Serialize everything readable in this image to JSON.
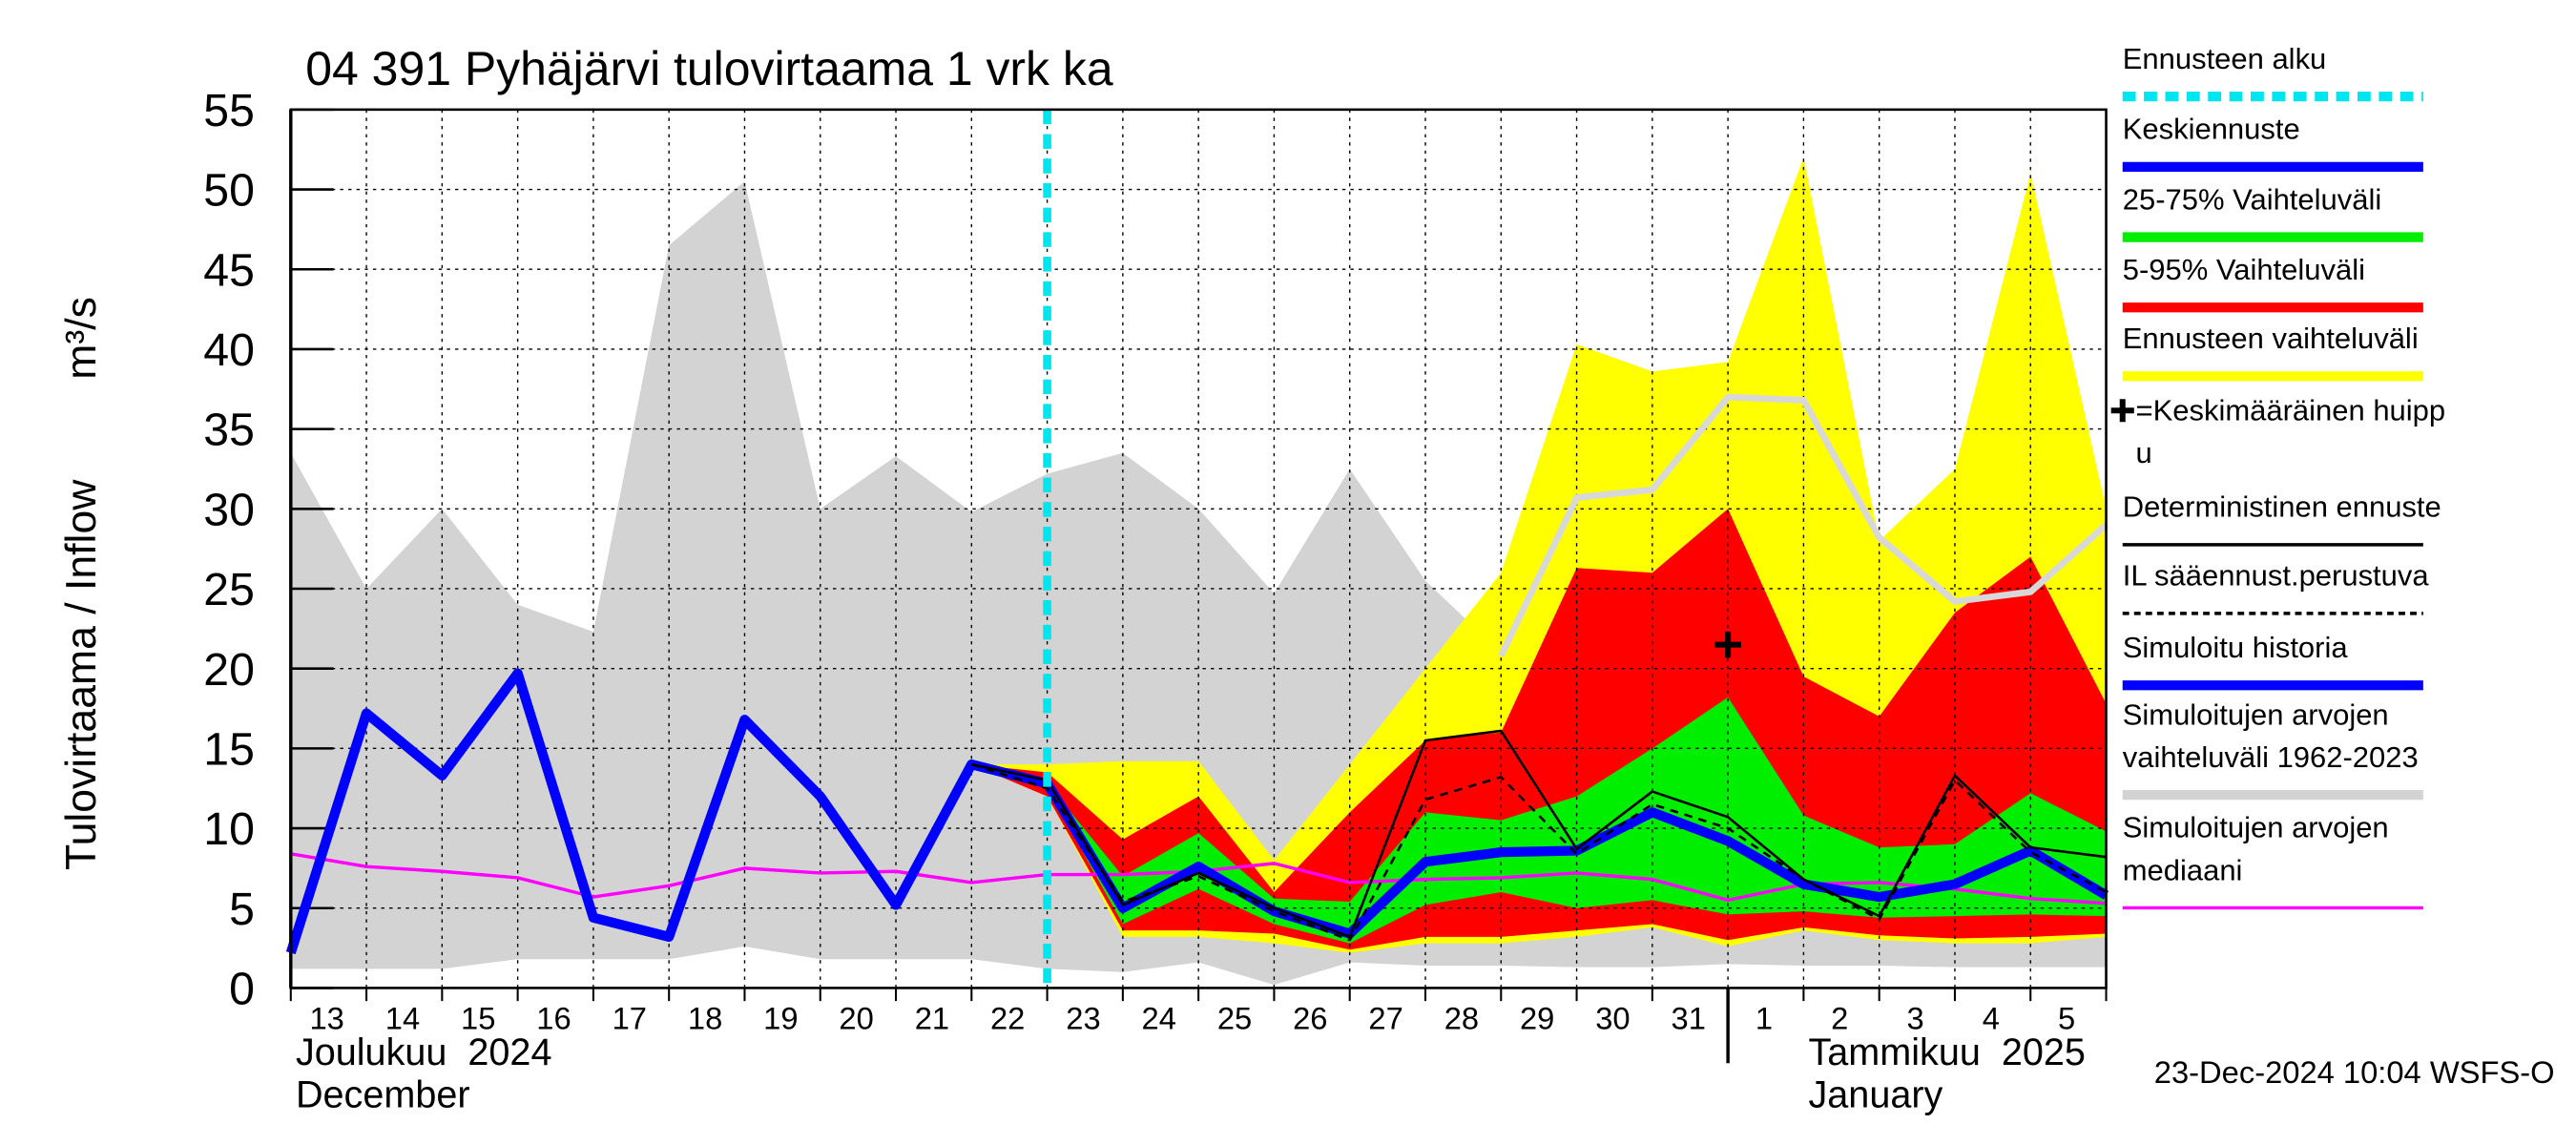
{
  "chart_data": {
    "type": "hydrograph",
    "title": "04 391 Pyhäjärvi tulovirtaama 1 vrk ka",
    "y_label": "Tulovirtaama / Inflow",
    "y_unit": "m³/s",
    "footer": "23-Dec-2024 10:04 WSFS-O",
    "categories": [
      "13",
      "14",
      "15",
      "16",
      "17",
      "18",
      "19",
      "20",
      "21",
      "22",
      "23",
      "24",
      "25",
      "26",
      "27",
      "28",
      "29",
      "30",
      "31",
      "1",
      "2",
      "3",
      "4",
      "5",
      null
    ],
    "months": [
      {
        "name": "Joulukuu  2024",
        "name_en": "December",
        "start": 0
      },
      {
        "name": "Tammikuu  2025",
        "name_en": "January",
        "start": 19
      }
    ],
    "ylim": [
      0,
      55
    ],
    "yticks": [
      0,
      5,
      10,
      15,
      20,
      25,
      30,
      35,
      40,
      45,
      50,
      55
    ],
    "grid": true,
    "forecast_start": 10,
    "forecast_start_color": "#00e5ee",
    "series": [
      {
        "kind": "band",
        "color": "#d3d3d3",
        "upper": [
          33.5,
          25,
          30,
          24,
          22.3,
          46.5,
          50.5,
          30,
          33.3,
          29.8,
          32.2,
          33.5,
          30,
          24.7,
          32.5,
          25.5,
          21,
          25,
          27,
          28,
          29,
          28,
          27,
          28,
          29.5
        ],
        "lower": [
          1.2,
          1.2,
          1.2,
          1.8,
          1.8,
          1.8,
          2.6,
          1.8,
          1.8,
          1.8,
          1.2,
          1,
          1.6,
          0.2,
          1.6,
          1.4,
          1.4,
          1.3,
          1.3,
          1.5,
          1.4,
          1.4,
          1.3,
          1.3,
          1.3
        ]
      },
      {
        "kind": "band",
        "color": "#ffff00",
        "upper": [
          null,
          null,
          null,
          null,
          null,
          null,
          null,
          null,
          null,
          14,
          14,
          14.2,
          14.2,
          8,
          14,
          20,
          26,
          40.3,
          38.6,
          39.2,
          52,
          28,
          32.5,
          51,
          30
        ],
        "lower": [
          null,
          null,
          null,
          null,
          null,
          null,
          null,
          null,
          null,
          14,
          12,
          3.2,
          3.2,
          2.8,
          2.2,
          2.8,
          2.8,
          3.2,
          3.8,
          2.6,
          3.6,
          3,
          2.8,
          2.8,
          3.2
        ]
      },
      {
        "kind": "band",
        "color": "#ff0000",
        "upper": [
          null,
          null,
          null,
          null,
          null,
          null,
          null,
          null,
          null,
          14,
          13.5,
          9.3,
          12,
          6,
          11,
          15.5,
          16,
          26.3,
          26,
          30,
          19.5,
          17,
          23.5,
          27,
          17.8
        ],
        "lower": [
          null,
          null,
          null,
          null,
          null,
          null,
          null,
          null,
          null,
          14,
          12,
          3.6,
          3.6,
          3.4,
          2.4,
          3.2,
          3.2,
          3.6,
          4,
          3,
          3.8,
          3.3,
          3.1,
          3.2,
          3.4
        ]
      },
      {
        "kind": "band",
        "color": "#00ee00",
        "upper": [
          null,
          null,
          null,
          null,
          null,
          null,
          null,
          null,
          null,
          14,
          12.8,
          7,
          9.7,
          5.6,
          5.4,
          11,
          10.5,
          12,
          15,
          18.2,
          10.8,
          8.8,
          9,
          12.2,
          9.8
        ],
        "lower": [
          null,
          null,
          null,
          null,
          null,
          null,
          null,
          null,
          null,
          14,
          12.5,
          4,
          6.2,
          4,
          2.8,
          5.2,
          6,
          5,
          5.5,
          4.6,
          4.8,
          4.4,
          4.5,
          4.6,
          4.5
        ]
      },
      {
        "kind": "line",
        "color": "#d8d8d8",
        "width": 4,
        "values": [
          null,
          null,
          null,
          null,
          null,
          null,
          null,
          null,
          null,
          null,
          null,
          null,
          null,
          null,
          null,
          null,
          20.8,
          30.7,
          31.2,
          37,
          36.8,
          28.2,
          24.2,
          24.8,
          29
        ]
      },
      {
        "kind": "line",
        "color": "#ff00ff",
        "width": 2,
        "values": [
          8.4,
          7.6,
          7.3,
          6.9,
          5.7,
          6.4,
          7.5,
          7.2,
          7.3,
          6.6,
          7.1,
          7.1,
          7.3,
          7.8,
          6.6,
          6.8,
          6.9,
          7.2,
          6.8,
          5.5,
          6.5,
          6.6,
          6.2,
          5.6,
          5.3
        ]
      },
      {
        "kind": "line",
        "color": "#0000ff",
        "width": 6,
        "values": [
          2.2,
          17.2,
          13.3,
          19.7,
          4.4,
          3.2,
          16.8,
          12,
          5.2,
          14,
          12.8,
          null,
          null,
          null,
          null,
          null,
          null,
          null,
          null,
          null,
          null,
          null,
          null,
          null,
          null
        ]
      },
      {
        "kind": "line",
        "color": "#0000ff",
        "width": 6,
        "values": [
          null,
          null,
          null,
          null,
          null,
          null,
          null,
          null,
          null,
          null,
          12.8,
          5,
          7.6,
          4.8,
          3.4,
          7.9,
          8.5,
          8.6,
          11,
          9.2,
          6.5,
          5.7,
          6.5,
          8.6,
          5.8
        ]
      },
      {
        "kind": "line",
        "color": "#000000",
        "width": 1.5,
        "values": [
          null,
          null,
          null,
          null,
          null,
          null,
          null,
          null,
          null,
          14,
          13,
          5.2,
          7.2,
          5,
          3.2,
          15.5,
          16.1,
          8.7,
          12.3,
          10.7,
          6.8,
          4.5,
          13.3,
          8.8,
          8.2
        ]
      },
      {
        "kind": "line",
        "color": "#000000",
        "width": 1.5,
        "dashed": true,
        "values": [
          null,
          null,
          null,
          null,
          null,
          null,
          null,
          null,
          null,
          14,
          12.5,
          5.4,
          7,
          4.8,
          3,
          11.8,
          13.2,
          8.4,
          11.5,
          10,
          6.8,
          4.3,
          13,
          8.5,
          6
        ]
      }
    ],
    "peak": {
      "index": 19,
      "value": 21.5
    },
    "legend": [
      {
        "label": [
          "Ennusteen alku"
        ],
        "color": "#00e5ee",
        "dashed": true
      },
      {
        "label": [
          "Keskiennuste"
        ],
        "color": "#0000ff"
      },
      {
        "label": [
          "25-75% Vaihteluväli"
        ],
        "color": "#00ee00"
      },
      {
        "label": [
          "5-95% Vaihteluväli"
        ],
        "color": "#ff0000"
      },
      {
        "label": [
          "Ennusteen vaihteluväli"
        ],
        "color": "#ffff00"
      },
      {
        "label": [
          "=Keskimääräinen huipp",
          "u"
        ],
        "plus": true
      },
      {
        "label": [
          "Deterministinen ennuste"
        ],
        "color": "#000000",
        "thin": true
      },
      {
        "label": [
          "IL sääennust.perustuva"
        ],
        "color": "#000000",
        "thin": true,
        "dashed": true
      },
      {
        "label": [
          "Simuloitu historia"
        ],
        "color": "#0000ff"
      },
      {
        "label": [
          "Simuloitujen arvojen",
          "vaihteluväli 1962-2023"
        ],
        "color": "#d3d3d3"
      },
      {
        "label": [
          "Simuloitujen arvojen",
          "mediaani"
        ],
        "color": "#ff00ff",
        "thin": true
      }
    ]
  }
}
